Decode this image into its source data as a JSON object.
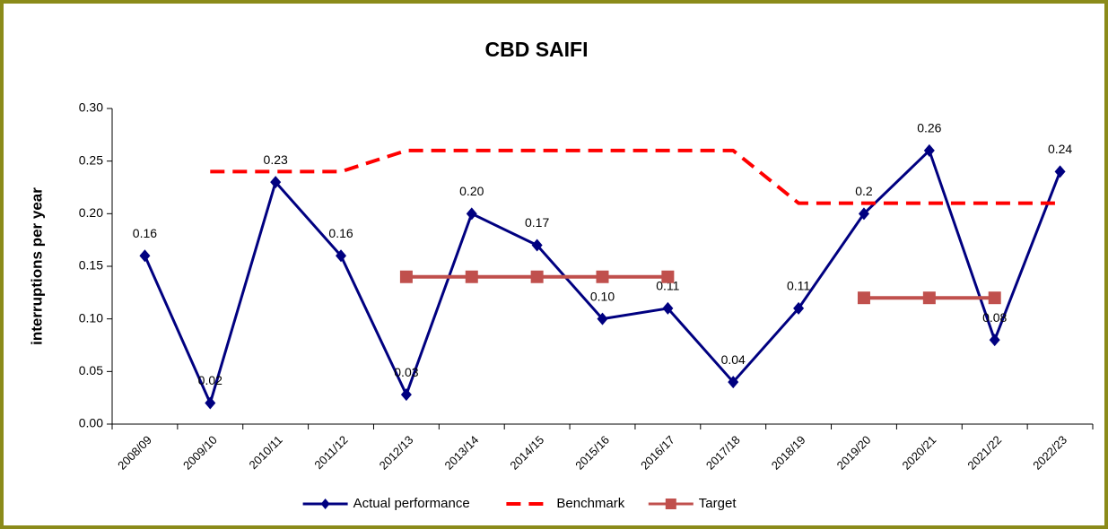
{
  "chart_data": {
    "type": "line",
    "title": "CBD SAIFI",
    "y_label": "interruptions per year",
    "categories": [
      "2008/09",
      "2009/10",
      "2010/11",
      "2011/12",
      "2012/13",
      "2013/14",
      "2014/15",
      "2015/16",
      "2016/17",
      "2017/18",
      "2018/19",
      "2019/20",
      "2020/21",
      "2021/22",
      "2022/23"
    ],
    "series": [
      {
        "name": "Actual performance",
        "color": "#000080",
        "marker": "diamond",
        "line": "solid",
        "values": [
          0.16,
          0.02,
          0.23,
          0.16,
          0.028,
          0.2,
          0.17,
          0.1,
          0.11,
          0.04,
          0.11,
          0.2,
          0.26,
          0.08,
          0.24
        ],
        "value_labels": [
          "0.16",
          "0.02",
          "0.23",
          "0.16",
          "0.03",
          "0.20",
          "0.17",
          "0.10",
          "0.11",
          "0.04",
          "0.11",
          "0.2",
          "0.26",
          "0.08",
          "0.24"
        ]
      },
      {
        "name": "Benchmark",
        "color": "#ff0000",
        "marker": "none",
        "line": "dashed",
        "values": [
          null,
          0.24,
          0.24,
          0.24,
          0.26,
          0.26,
          0.26,
          0.26,
          0.26,
          0.26,
          0.21,
          0.21,
          0.21,
          0.21,
          0.21
        ]
      },
      {
        "name": "Target",
        "color": "#c0504d",
        "marker": "square",
        "line": "solid",
        "values": [
          null,
          null,
          null,
          null,
          0.14,
          0.14,
          0.14,
          0.14,
          0.14,
          null,
          null,
          0.12,
          0.12,
          0.12,
          null
        ]
      }
    ],
    "ylim": [
      0,
      0.3
    ],
    "yticks": [
      {
        "value": 0,
        "label": "0.00"
      },
      0.05,
      {
        "value": 0.1,
        "label": "0.10"
      },
      0.15,
      {
        "value": 0.2,
        "label": "0.20"
      },
      0.25,
      {
        "value": 0.3,
        "label": "0.30"
      }
    ],
    "grid": false,
    "legend": "bottom"
  }
}
